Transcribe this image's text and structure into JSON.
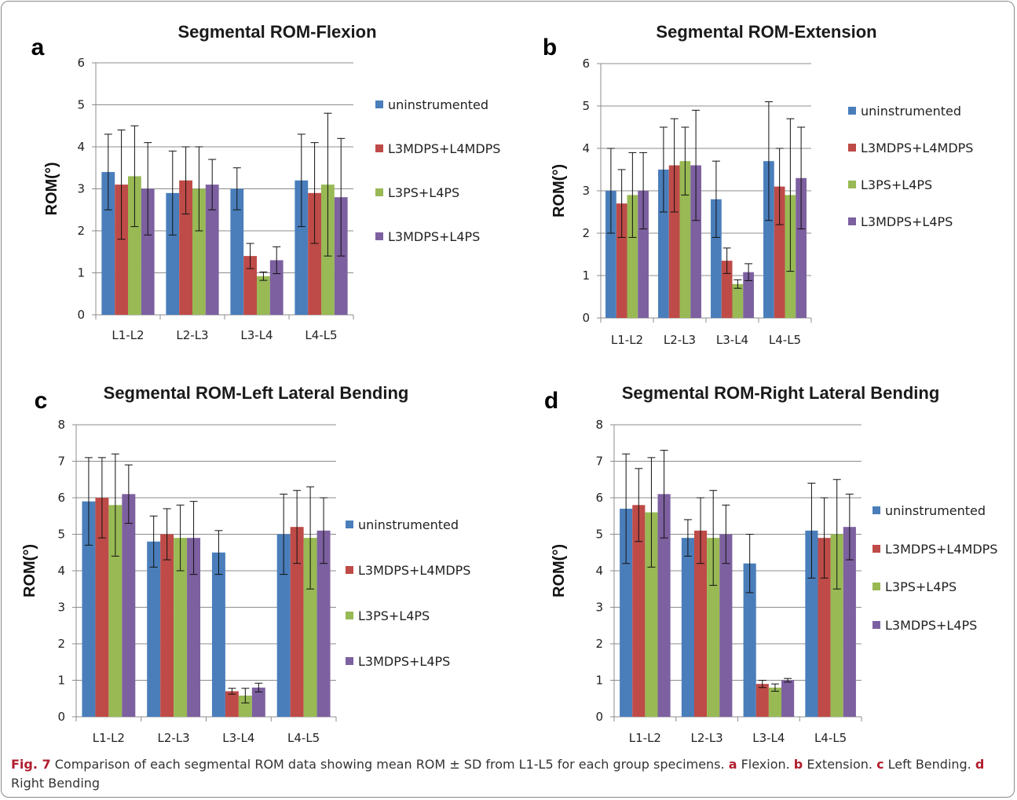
{
  "chart_data": [
    {
      "panel": "a",
      "type": "bar",
      "title": "Segmental ROM-Flexion",
      "ylabel": "ROM(°)",
      "xlabel": "",
      "ylim": [
        0,
        6
      ],
      "yticks": [
        0,
        1,
        2,
        3,
        4,
        5,
        6
      ],
      "categories": [
        "L1-L2",
        "L2-L3",
        "L3-L4",
        "L4-L5"
      ],
      "series": [
        {
          "name": "uninstrumented",
          "values": [
            3.4,
            2.9,
            3.0,
            3.2
          ],
          "err": [
            0.9,
            1.0,
            0.5,
            1.1
          ]
        },
        {
          "name": "L3MDPS+L4MDPS",
          "values": [
            3.1,
            3.2,
            1.4,
            2.9
          ],
          "err": [
            1.3,
            0.8,
            0.3,
            1.2
          ]
        },
        {
          "name": "L3PS+L4PS",
          "values": [
            3.3,
            3.0,
            0.92,
            3.1
          ],
          "err": [
            1.2,
            1.0,
            0.1,
            1.7
          ]
        },
        {
          "name": "L3MDPS+L4PS",
          "values": [
            3.0,
            3.1,
            1.3,
            2.8
          ],
          "err": [
            1.1,
            0.6,
            0.32,
            1.4
          ]
        }
      ],
      "grid": true,
      "legend_position": "right"
    },
    {
      "panel": "b",
      "type": "bar",
      "title": "Segmental ROM-Extension",
      "ylabel": "ROM(°)",
      "xlabel": "",
      "ylim": [
        0,
        6
      ],
      "yticks": [
        0,
        1,
        2,
        3,
        4,
        5,
        6
      ],
      "categories": [
        "L1-L2",
        "L2-L3",
        "L3-L4",
        "L4-L5"
      ],
      "series": [
        {
          "name": "uninstrumented",
          "values": [
            3.0,
            3.5,
            2.8,
            3.7
          ],
          "err": [
            1.0,
            1.0,
            0.9,
            1.4
          ]
        },
        {
          "name": "L3MDPS+L4MDPS",
          "values": [
            2.7,
            3.6,
            1.35,
            3.1
          ],
          "err": [
            0.8,
            1.1,
            0.3,
            0.9
          ]
        },
        {
          "name": "L3PS+L4PS",
          "values": [
            2.9,
            3.7,
            0.8,
            2.9
          ],
          "err": [
            1.0,
            0.8,
            0.1,
            1.8
          ]
        },
        {
          "name": "L3MDPS+L4PS",
          "values": [
            3.0,
            3.6,
            1.08,
            3.3
          ],
          "err": [
            0.9,
            1.3,
            0.2,
            1.2
          ]
        }
      ],
      "grid": true,
      "legend_position": "right"
    },
    {
      "panel": "c",
      "type": "bar",
      "title": "Segmental ROM-Left Lateral Bending",
      "ylabel": "ROM(°)",
      "xlabel": "",
      "ylim": [
        0,
        8
      ],
      "yticks": [
        0,
        1,
        2,
        3,
        4,
        5,
        6,
        7,
        8
      ],
      "categories": [
        "L1-L2",
        "L2-L3",
        "L3-L4",
        "L4-L5"
      ],
      "series": [
        {
          "name": "uninstrumented",
          "values": [
            5.9,
            4.8,
            4.5,
            5.0
          ],
          "err": [
            1.2,
            0.7,
            0.6,
            1.1
          ]
        },
        {
          "name": "L3MDPS+L4MDPS",
          "values": [
            6.0,
            5.0,
            0.7,
            5.2
          ],
          "err": [
            1.1,
            0.7,
            0.08,
            1.0
          ]
        },
        {
          "name": "L3PS+L4PS",
          "values": [
            5.8,
            4.9,
            0.58,
            4.9
          ],
          "err": [
            1.4,
            0.9,
            0.2,
            1.4
          ]
        },
        {
          "name": "L3MDPS+L4PS",
          "values": [
            6.1,
            4.9,
            0.8,
            5.1
          ],
          "err": [
            0.8,
            1.0,
            0.12,
            0.9
          ]
        }
      ],
      "grid": true,
      "legend_position": "right"
    },
    {
      "panel": "d",
      "type": "bar",
      "title": "Segmental ROM-Right Lateral Bending",
      "ylabel": "ROM(°)",
      "xlabel": "",
      "ylim": [
        0,
        8
      ],
      "yticks": [
        0,
        1,
        2,
        3,
        4,
        5,
        6,
        7,
        8
      ],
      "categories": [
        "L1-L2",
        "L2-L3",
        "L3-L4",
        "L4-L5"
      ],
      "series": [
        {
          "name": "uninstrumented",
          "values": [
            5.7,
            4.9,
            4.2,
            5.1
          ],
          "err": [
            1.5,
            0.5,
            0.8,
            1.3
          ]
        },
        {
          "name": "L3MDPS+L4MDPS",
          "values": [
            5.8,
            5.1,
            0.9,
            4.9
          ],
          "err": [
            1.0,
            0.9,
            0.1,
            1.1
          ]
        },
        {
          "name": "L3PS+L4PS",
          "values": [
            5.6,
            4.9,
            0.8,
            5.0
          ],
          "err": [
            1.5,
            1.3,
            0.1,
            1.5
          ]
        },
        {
          "name": "L3MDPS+L4PS",
          "values": [
            6.1,
            5.0,
            1.0,
            5.2
          ],
          "err": [
            1.2,
            0.8,
            0.05,
            0.9
          ]
        }
      ],
      "grid": true,
      "legend_position": "right"
    }
  ],
  "colors": {
    "uninstrumented": "#4a7ebb",
    "L3MDPS+L4MDPS": "#be4b48",
    "L3PS+L4PS": "#98b954",
    "L3MDPS+L4PS": "#7d60a0"
  },
  "caption": {
    "fig_label": "Fig. 7",
    "text1": " Comparison of each segmental ROM data showing mean ROM ± SD from L1-L5 for each group specimens. ",
    "a": "a",
    "text_a": " Flexion. ",
    "b": "b",
    "text_b": " Extension. ",
    "c": "c",
    "text_c": " Left Bending. ",
    "d": "d",
    "text_d": " Right Bending"
  }
}
